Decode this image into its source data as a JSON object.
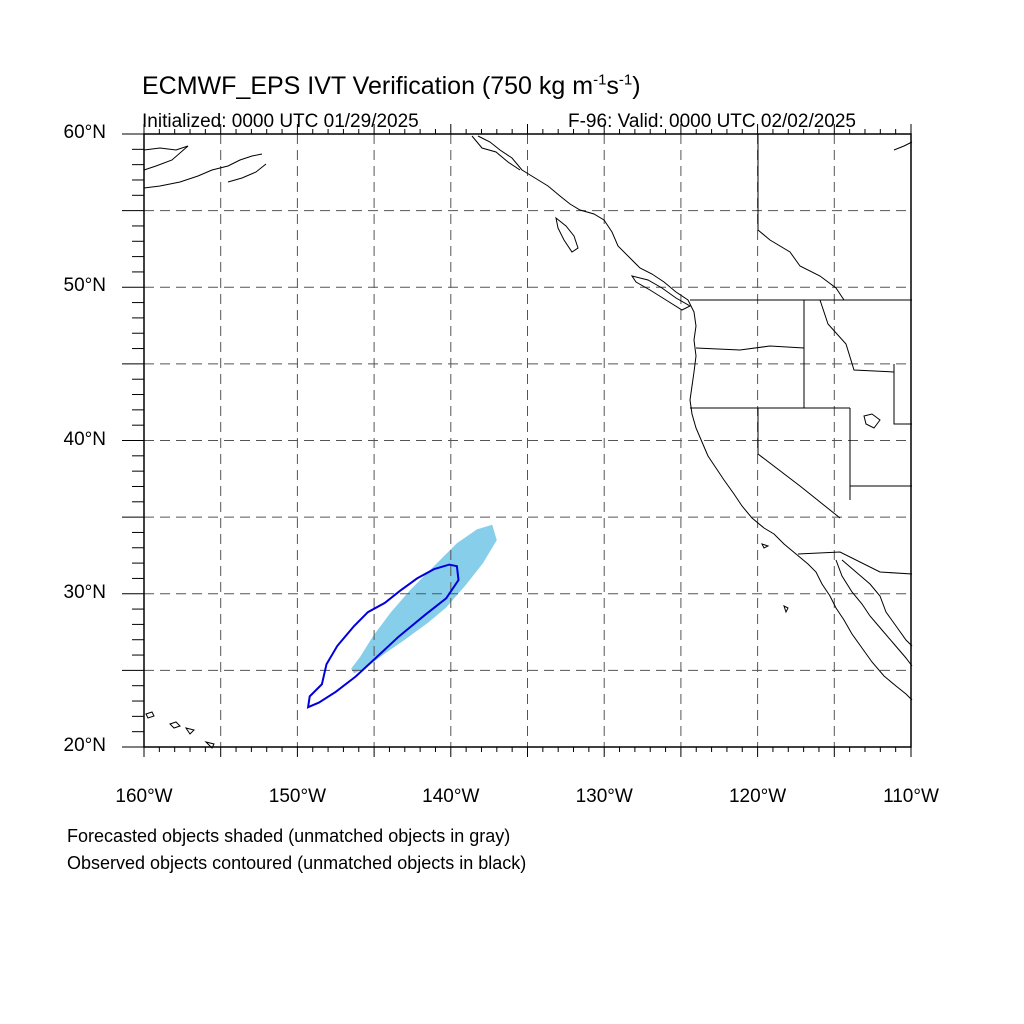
{
  "title": {
    "prefix": "ECMWF_EPS IVT Verification (750 kg m",
    "exp1": "-1",
    "mid": "s",
    "exp2": "-1",
    "suffix": ")"
  },
  "subtitle_left": "Initialized: 0000 UTC 01/29/2025",
  "subtitle_right": "F-96: Valid: 0000 UTC 02/02/2025",
  "notes": [
    "Forecasted objects shaded (unmatched objects in gray)",
    "Observed objects contoured (unmatched objects in black)"
  ],
  "map": {
    "lon_range": [
      -160,
      -110
    ],
    "lat_range": [
      20,
      60
    ],
    "lat_labels": [
      "20°N",
      "30°N",
      "40°N",
      "50°N",
      "60°N"
    ],
    "lon_labels": [
      "160°W",
      "150°W",
      "140°W",
      "130°W",
      "120°W",
      "110°W"
    ],
    "grid_lons": [
      -155,
      -150,
      -145,
      -140,
      -135,
      -130,
      -125,
      -120,
      -115
    ],
    "grid_lats": [
      25,
      30,
      35,
      40,
      45,
      50,
      55
    ],
    "colors": {
      "forecast_fill": "#87ceeb",
      "observed_contour": "#0000dd",
      "coast": "#000000",
      "grid": "#555555"
    },
    "forecast_object_lonlat": [
      [
        -146.3,
        24.8
      ],
      [
        -145.5,
        25.2
      ],
      [
        -144.3,
        26.1
      ],
      [
        -143.0,
        27.0
      ],
      [
        -141.5,
        28.1
      ],
      [
        -140.3,
        29.1
      ],
      [
        -139.0,
        30.6
      ],
      [
        -137.9,
        32.0
      ],
      [
        -137.0,
        33.5
      ],
      [
        -137.3,
        34.5
      ],
      [
        -138.3,
        34.2
      ],
      [
        -139.6,
        33.3
      ],
      [
        -141.0,
        31.9
      ],
      [
        -142.6,
        30.3
      ],
      [
        -143.9,
        28.8
      ],
      [
        -145.1,
        27.2
      ],
      [
        -145.9,
        25.9
      ],
      [
        -146.5,
        25.1
      ]
    ],
    "observed_object_lonlat": [
      [
        -149.3,
        22.6
      ],
      [
        -148.6,
        22.9
      ],
      [
        -147.5,
        23.6
      ],
      [
        -146.2,
        24.6
      ],
      [
        -144.9,
        25.8
      ],
      [
        -143.4,
        27.2
      ],
      [
        -141.7,
        28.6
      ],
      [
        -140.3,
        29.7
      ],
      [
        -139.5,
        30.9
      ],
      [
        -139.6,
        31.8
      ],
      [
        -140.1,
        31.9
      ],
      [
        -141.1,
        31.6
      ],
      [
        -142.2,
        31.0
      ],
      [
        -143.3,
        30.2
      ],
      [
        -144.3,
        29.4
      ],
      [
        -145.4,
        28.8
      ],
      [
        -146.3,
        27.9
      ],
      [
        -147.4,
        26.6
      ],
      [
        -148.1,
        25.4
      ],
      [
        -148.4,
        24.1
      ],
      [
        -149.2,
        23.3
      ],
      [
        -149.3,
        22.6
      ]
    ]
  }
}
